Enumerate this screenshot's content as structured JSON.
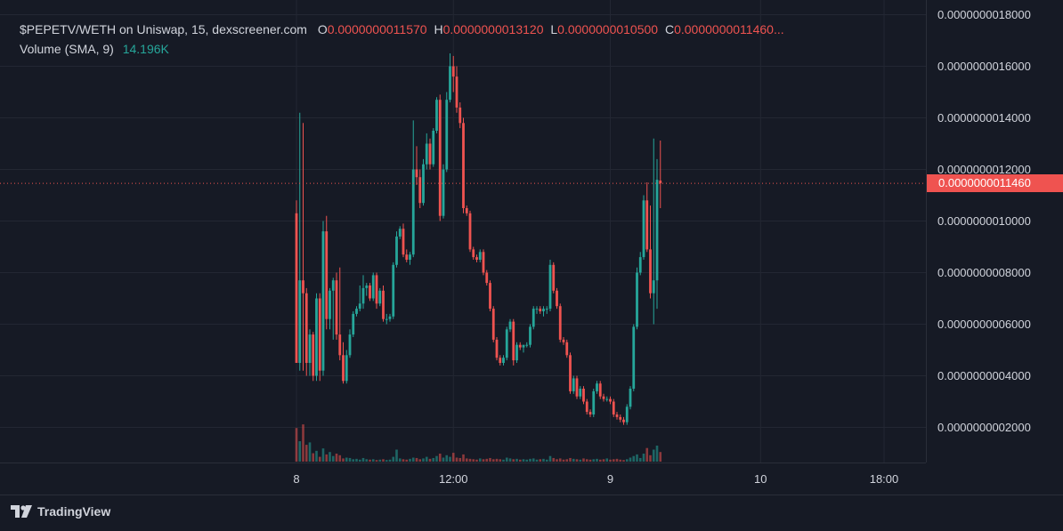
{
  "legend": {
    "symbol": "$PEPETV/WETH on Uniswap, 15, dexscreener.com",
    "open_label": "O",
    "open": "0.0000000011570",
    "high_label": "H",
    "high": "0.0000000013120",
    "low_label": "L",
    "low": "0.0000000010500",
    "close_label": "C",
    "close": "0.0000000011460...",
    "volume_label": "Volume (SMA, 9)",
    "volume_value": "14.196K"
  },
  "last_price_label": "0.0000000011460",
  "footer": {
    "brand": "TradingView"
  },
  "colors": {
    "up": "#26a69a",
    "down": "#ef5350",
    "background": "#161a25",
    "grid": "#232733",
    "text": "#d1d4dc"
  },
  "chart_data": {
    "type": "candlestick",
    "price_axis": {
      "ticks": [
        {
          "value": 1.8e-09,
          "label": "0.0000000018000"
        },
        {
          "value": 1.6e-09,
          "label": "0.0000000016000"
        },
        {
          "value": 1.4e-09,
          "label": "0.0000000014000"
        },
        {
          "value": 1.2e-09,
          "label": "0.0000000012000"
        },
        {
          "value": 1e-09,
          "label": "0.0000000010000"
        },
        {
          "value": 8e-10,
          "label": "0.0000000008000"
        },
        {
          "value": 6e-10,
          "label": "0.0000000006000"
        },
        {
          "value": 4e-10,
          "label": "0.0000000004000"
        },
        {
          "value": 2e-10,
          "label": "0.0000000002000"
        }
      ],
      "last_price": 1.146e-09
    },
    "time_axis": {
      "ticks": [
        {
          "bar": 0,
          "label": "8"
        },
        {
          "bar": 47,
          "label": "12:00"
        },
        {
          "bar": 94,
          "label": "9"
        },
        {
          "bar": 139,
          "label": "10"
        },
        {
          "bar": 176,
          "label": "18:00"
        }
      ]
    },
    "candles": [
      [
        1.03e-09,
        1.08e-09,
        4.5e-10,
        4.5e-10
      ],
      [
        4.5e-10,
        1.42e-09,
        4.2e-10,
        7.7e-10
      ],
      [
        7.7e-10,
        1.38e-09,
        4.2e-10,
        7.2e-10
      ],
      [
        7.2e-10,
        7.4e-10,
        4e-10,
        4.5e-10
      ],
      [
        4.5e-10,
        5.8e-10,
        4e-10,
        5.6e-10
      ],
      [
        5.6e-10,
        5.7e-10,
        3.8e-10,
        4e-10
      ],
      [
        4e-10,
        7.2e-10,
        3.8e-10,
        7e-10
      ],
      [
        7e-10,
        7.2e-10,
        3.8e-10,
        4.2e-10
      ],
      [
        4.2e-10,
        1e-09,
        4e-10,
        9.6e-10
      ],
      [
        9.6e-10,
        1.02e-09,
        5.8e-10,
        6.2e-10
      ],
      [
        6.2e-10,
        7.4e-10,
        5.8e-10,
        7.3e-10
      ],
      [
        7.3e-10,
        7.8e-10,
        5.4e-10,
        7.7e-10
      ],
      [
        7.7e-10,
        8e-10,
        5.4e-10,
        5.6e-10
      ],
      [
        5.6e-10,
        8.2e-10,
        4.6e-10,
        4.8e-10
      ],
      [
        4.8e-10,
        5.3e-10,
        3.7e-10,
        3.8e-10
      ],
      [
        3.8e-10,
        5e-10,
        3.7e-10,
        4.8e-10
      ],
      [
        4.8e-10,
        5.8e-10,
        4.7e-10,
        5.6e-10
      ],
      [
        5.6e-10,
        6.5e-10,
        5.5e-10,
        6.4e-10
      ],
      [
        6.4e-10,
        6.7e-10,
        6.3e-10,
        6.6e-10
      ],
      [
        6.6e-10,
        7.5e-10,
        6.5e-10,
        6.8e-10
      ],
      [
        6.8e-10,
        7.9e-10,
        6.6e-10,
        7.4e-10
      ],
      [
        7.4e-10,
        7.6e-10,
        7.1e-10,
        7.5e-10
      ],
      [
        7.5e-10,
        7.6e-10,
        6.9e-10,
        7e-10
      ],
      [
        7e-10,
        8e-10,
        6.9e-10,
        7.9e-10
      ],
      [
        7.9e-10,
        8e-10,
        6.6e-10,
        6.8e-10
      ],
      [
        6.8e-10,
        7.4e-10,
        6.7e-10,
        7.3e-10
      ],
      [
        7.3e-10,
        7.5e-10,
        6.1e-10,
        6.2e-10
      ],
      [
        6.2e-10,
        6.4e-10,
        6e-10,
        6.2e-10
      ],
      [
        6.2e-10,
        6.4e-10,
        6.1e-10,
        6.3e-10
      ],
      [
        6.3e-10,
        8.4e-10,
        6.2e-10,
        8.3e-10
      ],
      [
        8.3e-10,
        9.6e-10,
        8.2e-10,
        9.4e-10
      ],
      [
        9.4e-10,
        9.8e-10,
        9.3e-10,
        9.7e-10
      ],
      [
        9.7e-10,
        9.9e-10,
        8.6e-10,
        8.7e-10
      ],
      [
        8.7e-10,
        8.9e-10,
        8.4e-10,
        8.5e-10
      ],
      [
        8.5e-10,
        8.8e-10,
        8.3e-10,
        8.7e-10
      ],
      [
        8.7e-10,
        1.39e-09,
        8.6e-10,
        1.2e-09
      ],
      [
        1.2e-09,
        1.29e-09,
        1.14e-09,
        1.17e-09
      ],
      [
        1.17e-09,
        1.2e-09,
        1.05e-09,
        1.07e-09
      ],
      [
        1.07e-09,
        1.24e-09,
        1.06e-09,
        1.22e-09
      ],
      [
        1.22e-09,
        1.34e-09,
        1.2e-09,
        1.3e-09
      ],
      [
        1.3e-09,
        1.32e-09,
        1.2e-09,
        1.22e-09
      ],
      [
        1.22e-09,
        1.36e-09,
        1.21e-09,
        1.35e-09
      ],
      [
        1.35e-09,
        1.48e-09,
        1.34e-09,
        1.47e-09
      ],
      [
        1.47e-09,
        1.49e-09,
        1e-09,
        1.02e-09
      ],
      [
        1.02e-09,
        1.22e-09,
        1.01e-09,
        1.2e-09
      ],
      [
        1.2e-09,
        1.5e-09,
        1.19e-09,
        1.47e-09
      ],
      [
        1.47e-09,
        1.65e-09,
        1.46e-09,
        1.6e-09
      ],
      [
        1.6e-09,
        1.64e-09,
        1.5e-09,
        1.56e-09
      ],
      [
        1.56e-09,
        1.6e-09,
        1.42e-09,
        1.44e-09
      ],
      [
        1.44e-09,
        1.46e-09,
        1.36e-09,
        1.38e-09
      ],
      [
        1.38e-09,
        1.4e-09,
        1.03e-09,
        1.05e-09
      ],
      [
        1.05e-09,
        1.06e-09,
        1.02e-09,
        1.03e-09
      ],
      [
        1.03e-09,
        1.04e-09,
        8.8e-10,
        8.9e-10
      ],
      [
        8.9e-10,
        9e-10,
        8.5e-10,
        8.6e-10
      ],
      [
        8.6e-10,
        8.7e-10,
        8.4e-10,
        8.5e-10
      ],
      [
        8.5e-10,
        8.9e-10,
        8.4e-10,
        8.8e-10
      ],
      [
        8.8e-10,
        8.9e-10,
        7.9e-10,
        8e-10
      ],
      [
        8e-10,
        8.1e-10,
        7.5e-10,
        7.6e-10
      ],
      [
        7.6e-10,
        7.7e-10,
        6.5e-10,
        6.6e-10
      ],
      [
        6.6e-10,
        6.7e-10,
        5.3e-10,
        5.4e-10
      ],
      [
        5.4e-10,
        5.5e-10,
        4.6e-10,
        4.7e-10
      ],
      [
        4.7e-10,
        4.8e-10,
        4.4e-10,
        4.5e-10
      ],
      [
        4.5e-10,
        4.8e-10,
        4.4e-10,
        4.7e-10
      ],
      [
        4.7e-10,
        5.9e-10,
        4.6e-10,
        5.8e-10
      ],
      [
        5.8e-10,
        6.2e-10,
        5.7e-10,
        6.1e-10
      ],
      [
        6.1e-10,
        6.2e-10,
        4.4e-10,
        4.6e-10
      ],
      [
        4.6e-10,
        5.3e-10,
        4.5e-10,
        5.2e-10
      ],
      [
        5.2e-10,
        5.3e-10,
        5e-10,
        5.1e-10
      ],
      [
        5.1e-10,
        5.2e-10,
        4.9e-10,
        5.2e-10
      ],
      [
        5.2e-10,
        5.3e-10,
        5.1e-10,
        5.2e-10
      ],
      [
        5.2e-10,
        6e-10,
        5.1e-10,
        5.9e-10
      ],
      [
        5.9e-10,
        6.7e-10,
        5.8e-10,
        6.6e-10
      ],
      [
        6.6e-10,
        6.7e-10,
        6.4e-10,
        6.6e-10
      ],
      [
        6.6e-10,
        6.7e-10,
        6.4e-10,
        6.5e-10
      ],
      [
        6.5e-10,
        6.7e-10,
        6.3e-10,
        6.6e-10
      ],
      [
        6.6e-10,
        6.7e-10,
        6.4e-10,
        6.6e-10
      ],
      [
        6.6e-10,
        8.5e-10,
        6.5e-10,
        8.3e-10
      ],
      [
        8.3e-10,
        8.4e-10,
        7.2e-10,
        7.3e-10
      ],
      [
        7.3e-10,
        7.4e-10,
        6.6e-10,
        6.7e-10
      ],
      [
        6.7e-10,
        6.8e-10,
        5.3e-10,
        5.4e-10
      ],
      [
        5.4e-10,
        5.5e-10,
        5.2e-10,
        5.3e-10
      ],
      [
        5.3e-10,
        5.4e-10,
        4.7e-10,
        4.8e-10
      ],
      [
        4.8e-10,
        4.9e-10,
        3.3e-10,
        3.4e-10
      ],
      [
        3.4e-10,
        4e-10,
        3.3e-10,
        3.9e-10
      ],
      [
        3.9e-10,
        4e-10,
        3.1e-10,
        3.2e-10
      ],
      [
        3.2e-10,
        3.6e-10,
        3.1e-10,
        3.5e-10
      ],
      [
        3.5e-10,
        3.6e-10,
        2.9e-10,
        3e-10
      ],
      [
        3e-10,
        3.1e-10,
        2.5e-10,
        2.6e-10
      ],
      [
        2.6e-10,
        2.7e-10,
        2.4e-10,
        2.5e-10
      ],
      [
        2.5e-10,
        3.5e-10,
        2.4e-10,
        3.4e-10
      ],
      [
        3.4e-10,
        3.8e-10,
        3.3e-10,
        3.7e-10
      ],
      [
        3.7e-10,
        3.8e-10,
        3.1e-10,
        3.2e-10
      ],
      [
        3.2e-10,
        3.3e-10,
        3e-10,
        3.1e-10
      ],
      [
        3.1e-10,
        3.2e-10,
        3e-10,
        3.1e-10
      ],
      [
        3.1e-10,
        3.2e-10,
        2.9e-10,
        3e-10
      ],
      [
        3e-10,
        3.1e-10,
        2.4e-10,
        2.5e-10
      ],
      [
        2.5e-10,
        2.6e-10,
        2.3e-10,
        2.4e-10
      ],
      [
        2.4e-10,
        2.5e-10,
        2.2e-10,
        2.3e-10
      ],
      [
        2.3e-10,
        2.4e-10,
        2.1e-10,
        2.2e-10
      ],
      [
        2.2e-10,
        2.9e-10,
        2.1e-10,
        2.8e-10
      ],
      [
        2.8e-10,
        3.6e-10,
        2.7e-10,
        3.5e-10
      ],
      [
        3.5e-10,
        6e-10,
        3.4e-10,
        5.9e-10
      ],
      [
        5.9e-10,
        8.2e-10,
        5.8e-10,
        8e-10
      ],
      [
        8e-10,
        8.8e-10,
        7.9e-10,
        8.6e-10
      ],
      [
        8.6e-10,
        1.1e-09,
        8.5e-10,
        1.08e-09
      ],
      [
        1.08e-09,
        1.15e-09,
        8.8e-10,
        8.9e-10
      ],
      [
        8.9e-10,
        1.06e-09,
        7e-10,
        7.2e-10
      ],
      [
        7.2e-10,
        1.32e-09,
        6e-10,
        7.7e-10
      ],
      [
        7.7e-10,
        1.24e-09,
        6.6e-10,
        1.16e-09
      ],
      [
        1.157e-09,
        1.312e-09,
        1.05e-09,
        1.146e-09
      ]
    ],
    "volume": [
      84,
      51,
      93,
      42,
      48,
      21,
      27,
      12,
      33,
      18,
      24,
      14,
      20,
      16,
      8,
      10,
      9,
      6,
      7,
      5,
      9,
      6,
      5,
      6,
      4,
      5,
      6,
      4,
      5,
      12,
      30,
      8,
      6,
      5,
      7,
      10,
      9,
      6,
      8,
      12,
      7,
      9,
      14,
      20,
      10,
      16,
      12,
      22,
      10,
      9,
      18,
      8,
      7,
      6,
      5,
      8,
      6,
      7,
      9,
      6,
      7,
      6,
      5,
      10,
      8,
      6,
      7,
      5,
      6,
      5,
      7,
      8,
      5,
      6,
      7,
      5,
      14,
      9,
      6,
      8,
      5,
      6,
      9,
      7,
      6,
      5,
      8,
      6,
      5,
      6,
      7,
      5,
      6,
      8,
      5,
      6,
      7,
      5,
      4,
      6,
      10,
      14,
      18,
      9,
      20,
      34,
      16,
      30,
      40,
      24
    ]
  }
}
